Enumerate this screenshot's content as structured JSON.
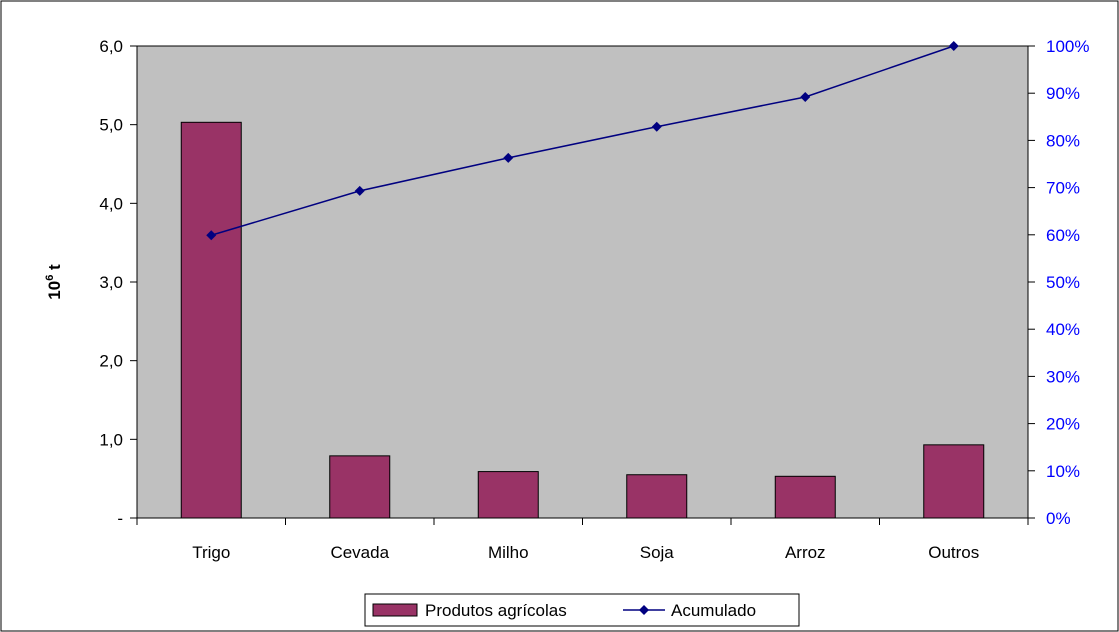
{
  "colors": {
    "plot_background": "#c0c0c0",
    "bar_fill": "#993366",
    "line_color": "#000080",
    "right_axis_text": "#0000ff"
  },
  "chart_data": {
    "type": "bar",
    "categories": [
      "Trigo",
      "Cevada",
      "Milho",
      "Soja",
      "Arroz",
      "Outros"
    ],
    "ylabel": "10",
    "ylabel_sup": "6",
    "ylabel_suffix": " t",
    "ylim": [
      0,
      6
    ],
    "yticks": [
      {
        "value": 0,
        "label": "-"
      },
      {
        "value": 1,
        "label": "1,0"
      },
      {
        "value": 2,
        "label": "2,0"
      },
      {
        "value": 3,
        "label": "3,0"
      },
      {
        "value": 4,
        "label": "4,0"
      },
      {
        "value": 5,
        "label": "5,0"
      },
      {
        "value": 6,
        "label": "6,0"
      }
    ],
    "y2lim": [
      0,
      100
    ],
    "y2ticks": [
      "0%",
      "10%",
      "20%",
      "30%",
      "40%",
      "50%",
      "60%",
      "70%",
      "80%",
      "90%",
      "100%"
    ],
    "series": [
      {
        "name": "Produtos agrícolas",
        "type": "bar",
        "values": [
          5.03,
          0.79,
          0.59,
          0.55,
          0.53,
          0.93
        ]
      },
      {
        "name": "Acumulado",
        "type": "line",
        "axis": "right",
        "values": [
          59.9,
          69.3,
          76.3,
          82.9,
          89.2,
          100
        ]
      }
    ],
    "grid": false,
    "legend_position": "bottom"
  }
}
